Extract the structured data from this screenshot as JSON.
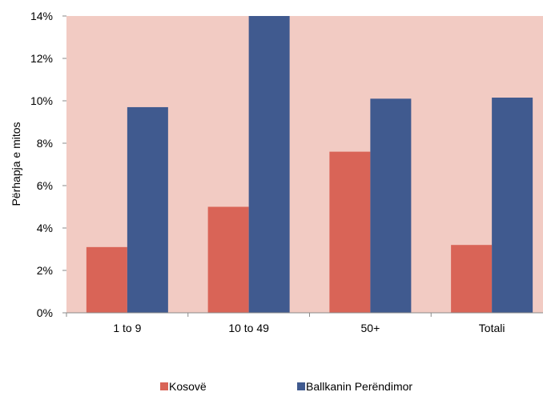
{
  "chart_data": {
    "type": "bar",
    "categories": [
      "1 to 9",
      "10 to 49",
      "50+",
      "Totali"
    ],
    "series": [
      {
        "name": "Kosovë",
        "color": "#d96457",
        "values": [
          3.1,
          5.0,
          7.6,
          3.2
        ]
      },
      {
        "name": "Ballkanin Perëndimor",
        "color": "#405a8f",
        "values": [
          9.7,
          14.0,
          10.1,
          10.15
        ]
      }
    ],
    "ylabel": "Përhapja e mitos",
    "yticks": [
      "0%",
      "2%",
      "4%",
      "6%",
      "8%",
      "10%",
      "12%",
      "14%"
    ],
    "ylim": [
      0,
      14
    ],
    "grid": false,
    "legend": "bottom",
    "plot_background": "#f2cbc3"
  }
}
